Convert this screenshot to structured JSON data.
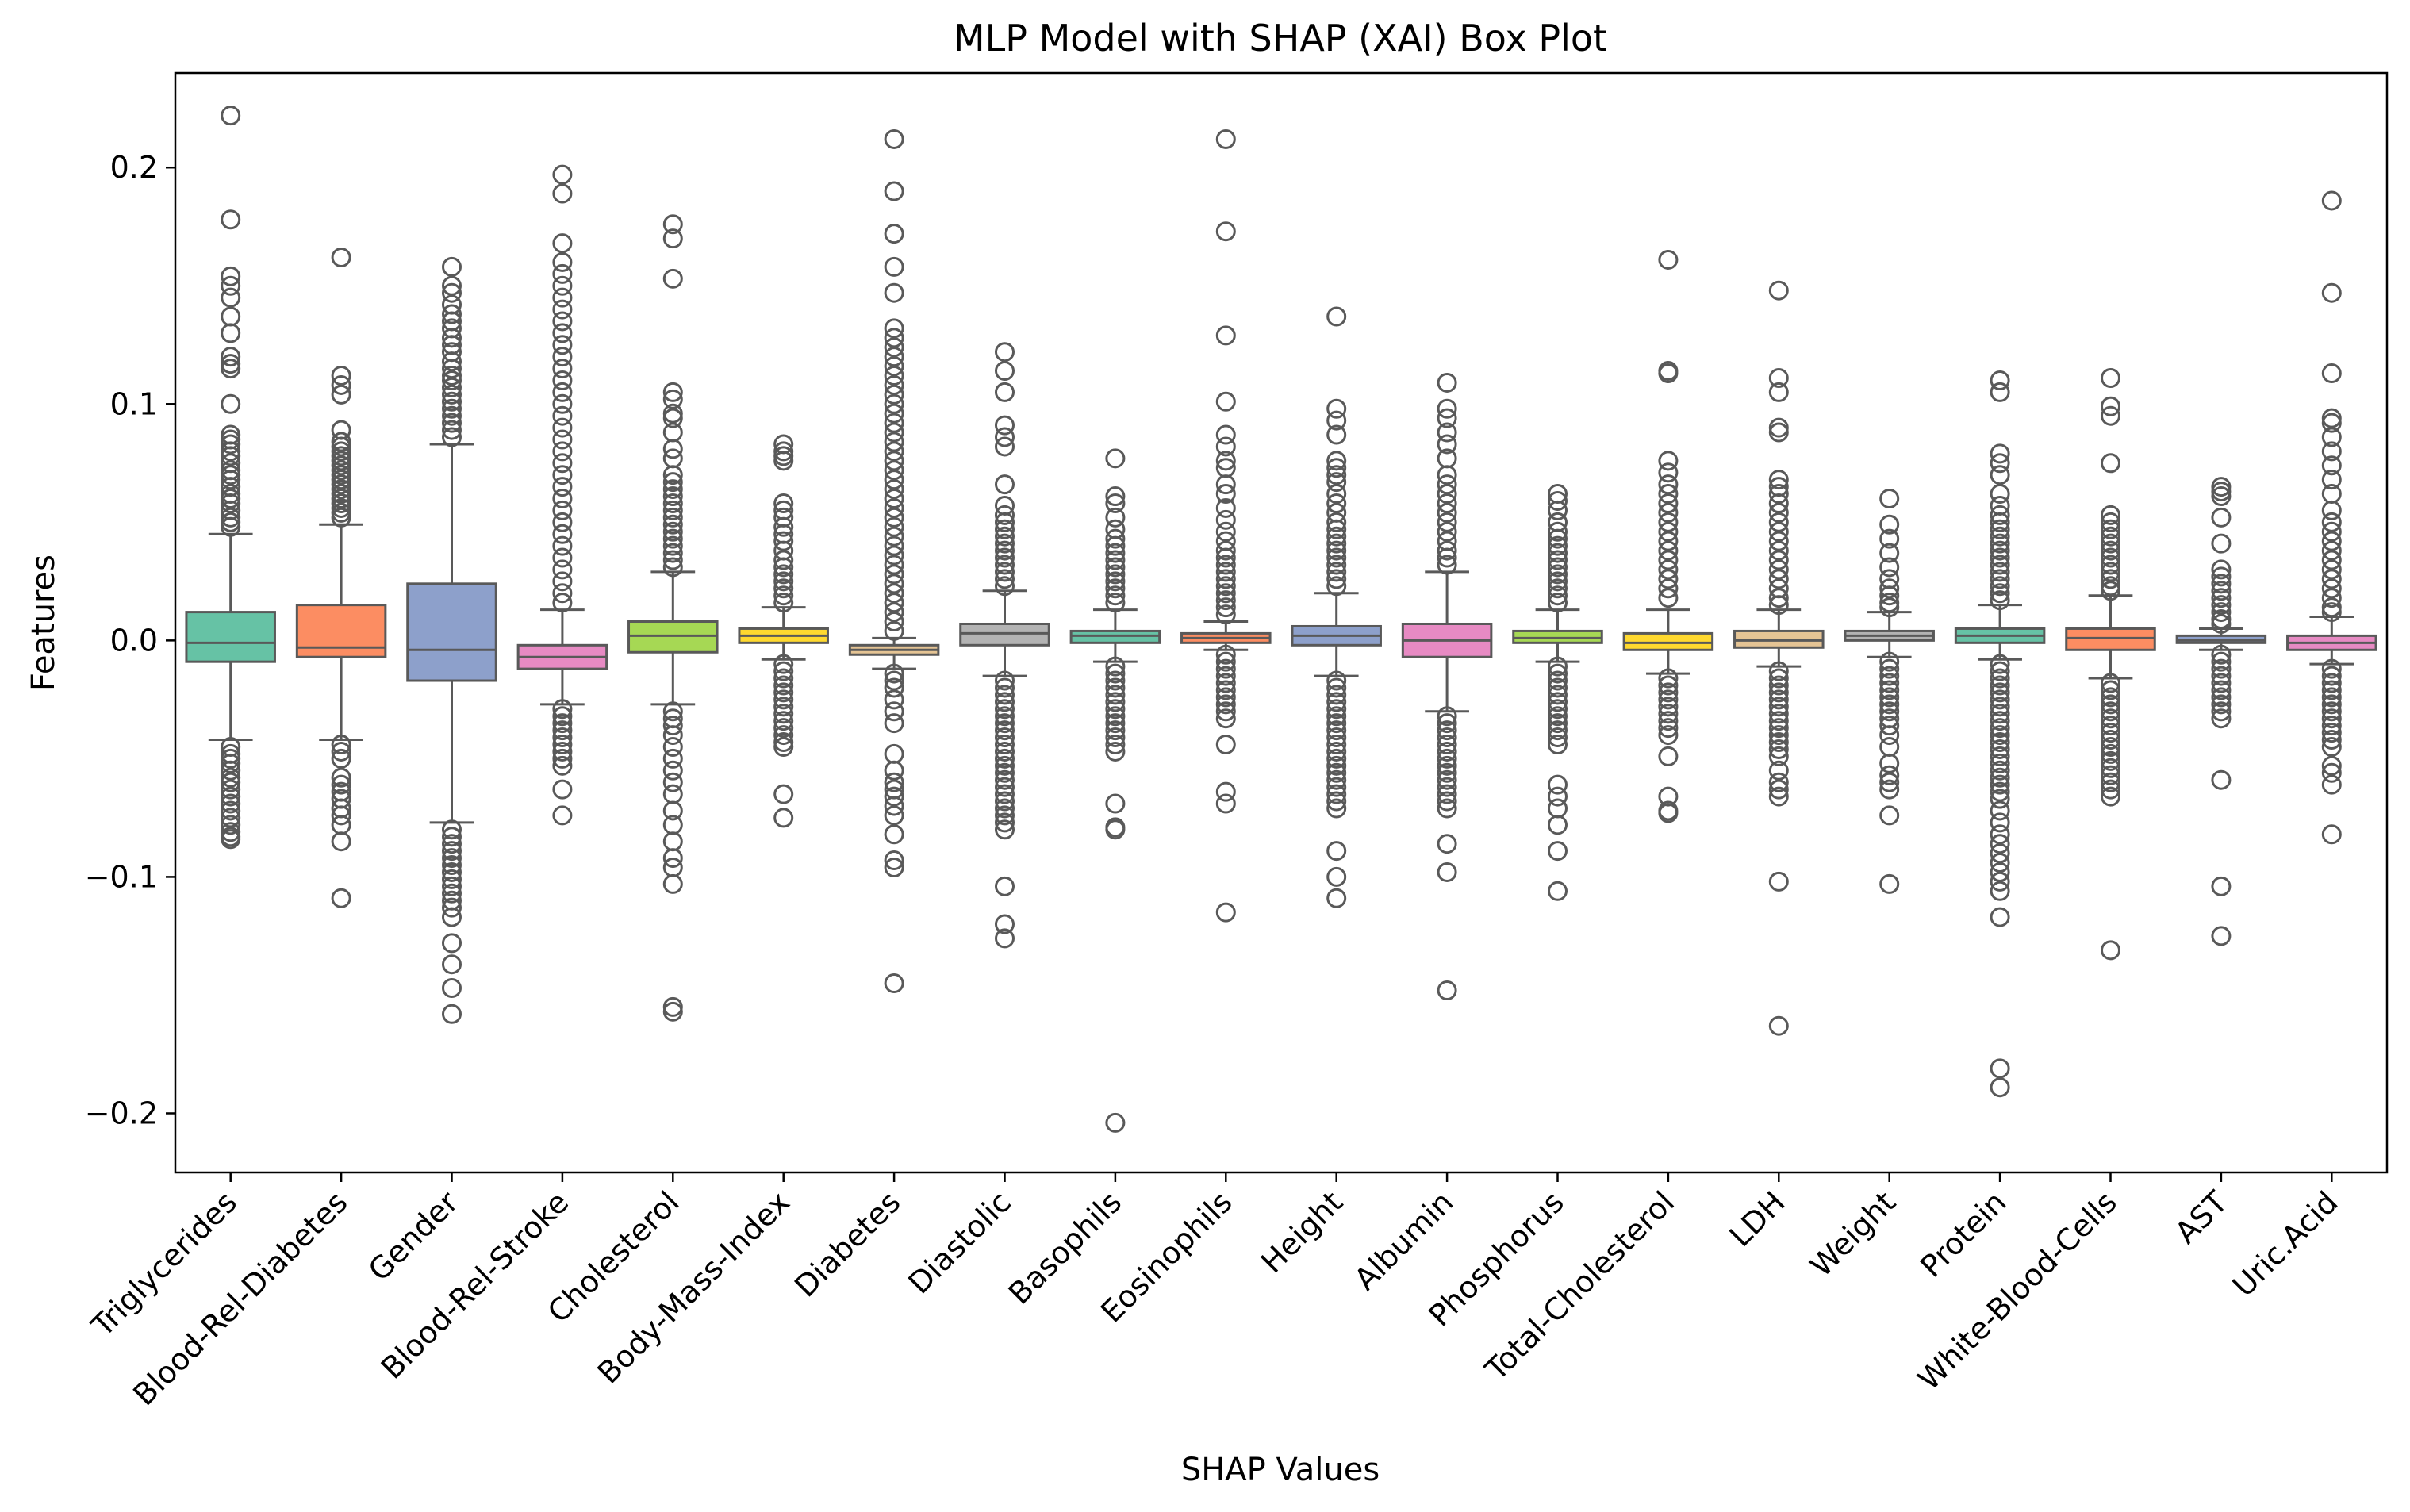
{
  "chart_data": {
    "type": "box",
    "title": "MLP Model with SHAP (XAI) Box Plot",
    "xlabel": "SHAP Values",
    "ylabel": "Features",
    "ylim": [
      -0.225,
      0.24
    ],
    "yticks": [
      -0.2,
      -0.1,
      0.0,
      0.1,
      0.2
    ],
    "ytick_labels": [
      "−0.2",
      "−0.1",
      "0.0",
      "0.1",
      "0.2"
    ],
    "grid": false,
    "categories": [
      "Triglycerides",
      "Blood-Rel-Diabetes",
      "Gender",
      "Blood-Rel-Stroke",
      "Cholesterol",
      "Body-Mass-Index",
      "Diabetes",
      "Diastolic",
      "Basophils",
      "Eosinophils",
      "Height",
      "Albumin",
      "Phosphorus",
      "Total-Cholesterol",
      "LDH",
      "Weight",
      "Protein",
      "White-Blood-Cells",
      "AST",
      "Uric.Acid"
    ],
    "colors": [
      "#66c2a5",
      "#fc8d62",
      "#8da0cb",
      "#e78ac3",
      "#a6d854",
      "#ffd92f",
      "#e5c494",
      "#b3b3b3",
      "#66c2a5",
      "#fc8d62",
      "#8da0cb",
      "#e78ac3",
      "#a6d854",
      "#ffd92f",
      "#e5c494",
      "#b3b3b3",
      "#66c2a5",
      "#fc8d62",
      "#8da0cb",
      "#e78ac3"
    ],
    "boxes": [
      {
        "name": "Triglycerides",
        "whislo": -0.042,
        "q1": -0.009,
        "med": -0.001,
        "q3": 0.012,
        "whishi": 0.045,
        "fliers": [
          0.222,
          0.178,
          0.154,
          0.15,
          0.145,
          0.137,
          0.13,
          0.12,
          0.117,
          0.115,
          0.1,
          0.087,
          0.085,
          0.083,
          0.08,
          0.078,
          0.075,
          0.072,
          0.07,
          0.068,
          0.065,
          0.062,
          0.06,
          0.058,
          0.055,
          0.052,
          0.05,
          0.048,
          -0.045,
          -0.048,
          -0.05,
          -0.052,
          -0.055,
          -0.058,
          -0.06,
          -0.063,
          -0.066,
          -0.069,
          -0.072,
          -0.075,
          -0.078,
          -0.081,
          -0.083,
          -0.084
        ]
      },
      {
        "name": "Blood-Rel-Diabetes",
        "whislo": -0.042,
        "q1": -0.007,
        "med": -0.003,
        "q3": 0.015,
        "whishi": 0.049,
        "fliers": [
          0.162,
          0.112,
          0.108,
          0.104,
          0.089,
          0.084,
          0.082,
          0.08,
          0.078,
          0.076,
          0.074,
          0.072,
          0.07,
          0.068,
          0.066,
          0.064,
          0.062,
          0.06,
          0.058,
          0.056,
          0.054,
          0.052,
          -0.044,
          -0.047,
          -0.05,
          -0.058,
          -0.061,
          -0.064,
          -0.067,
          -0.071,
          -0.074,
          -0.078,
          -0.085,
          -0.109
        ]
      },
      {
        "name": "Gender",
        "whislo": -0.077,
        "q1": -0.017,
        "med": -0.004,
        "q3": 0.024,
        "whishi": 0.083,
        "fliers": [
          0.158,
          0.15,
          0.147,
          0.142,
          0.138,
          0.135,
          0.132,
          0.128,
          0.125,
          0.122,
          0.118,
          0.115,
          0.112,
          0.11,
          0.107,
          0.104,
          0.101,
          0.098,
          0.095,
          0.092,
          0.089,
          0.086,
          -0.08,
          -0.083,
          -0.086,
          -0.089,
          -0.092,
          -0.095,
          -0.098,
          -0.101,
          -0.104,
          -0.107,
          -0.11,
          -0.113,
          -0.117,
          -0.128,
          -0.137,
          -0.147,
          -0.158
        ]
      },
      {
        "name": "Blood-Rel-Stroke",
        "whislo": -0.027,
        "q1": -0.012,
        "med": -0.007,
        "q3": -0.002,
        "whishi": 0.013,
        "fliers": [
          0.197,
          0.189,
          0.168,
          0.16,
          0.155,
          0.15,
          0.145,
          0.14,
          0.135,
          0.13,
          0.125,
          0.12,
          0.115,
          0.11,
          0.105,
          0.1,
          0.095,
          0.09,
          0.085,
          0.08,
          0.075,
          0.07,
          0.065,
          0.06,
          0.055,
          0.05,
          0.045,
          0.04,
          0.035,
          0.03,
          0.025,
          0.02,
          0.016,
          -0.029,
          -0.032,
          -0.035,
          -0.038,
          -0.041,
          -0.044,
          -0.047,
          -0.05,
          -0.053,
          -0.063,
          -0.074
        ]
      },
      {
        "name": "Cholesterol",
        "whislo": -0.027,
        "q1": -0.005,
        "med": 0.002,
        "q3": 0.008,
        "whishi": 0.029,
        "fliers": [
          0.176,
          0.17,
          0.153,
          0.105,
          0.102,
          0.096,
          0.094,
          0.088,
          0.081,
          0.077,
          0.07,
          0.067,
          0.064,
          0.061,
          0.058,
          0.055,
          0.052,
          0.049,
          0.046,
          0.043,
          0.04,
          0.037,
          0.034,
          0.031,
          -0.03,
          -0.033,
          -0.036,
          -0.04,
          -0.045,
          -0.05,
          -0.055,
          -0.06,
          -0.065,
          -0.072,
          -0.078,
          -0.085,
          -0.092,
          -0.096,
          -0.103,
          -0.155,
          -0.157
        ]
      },
      {
        "name": "Body-Mass-Index",
        "whislo": -0.008,
        "q1": -0.001,
        "med": 0.002,
        "q3": 0.005,
        "whishi": 0.014,
        "fliers": [
          0.083,
          0.08,
          0.078,
          0.076,
          0.058,
          0.055,
          0.052,
          0.048,
          0.045,
          0.042,
          0.038,
          0.034,
          0.031,
          0.028,
          0.025,
          0.022,
          0.019,
          0.016,
          -0.01,
          -0.013,
          -0.016,
          -0.019,
          -0.022,
          -0.025,
          -0.028,
          -0.031,
          -0.034,
          -0.037,
          -0.04,
          -0.043,
          -0.045,
          -0.065,
          -0.075
        ]
      },
      {
        "name": "Diabetes",
        "whislo": -0.012,
        "q1": -0.006,
        "med": -0.004,
        "q3": -0.002,
        "whishi": 0.001,
        "fliers": [
          0.212,
          0.19,
          0.172,
          0.158,
          0.147,
          0.132,
          0.128,
          0.124,
          0.12,
          0.116,
          0.112,
          0.108,
          0.104,
          0.1,
          0.096,
          0.092,
          0.088,
          0.084,
          0.08,
          0.076,
          0.072,
          0.068,
          0.064,
          0.06,
          0.056,
          0.052,
          0.048,
          0.044,
          0.04,
          0.036,
          0.032,
          0.028,
          0.024,
          0.02,
          0.016,
          0.012,
          0.008,
          0.004,
          -0.014,
          -0.017,
          -0.02,
          -0.025,
          -0.03,
          -0.035,
          -0.048,
          -0.055,
          -0.06,
          -0.063,
          -0.066,
          -0.07,
          -0.074,
          -0.082,
          -0.093,
          -0.096,
          -0.145
        ]
      },
      {
        "name": "Diastolic",
        "whislo": -0.015,
        "q1": -0.002,
        "med": 0.003,
        "q3": 0.007,
        "whishi": 0.021,
        "fliers": [
          0.122,
          0.114,
          0.105,
          0.091,
          0.086,
          0.082,
          0.066,
          0.057,
          0.053,
          0.05,
          0.047,
          0.044,
          0.041,
          0.038,
          0.035,
          0.032,
          0.029,
          0.026,
          0.023,
          -0.017,
          -0.02,
          -0.023,
          -0.026,
          -0.029,
          -0.032,
          -0.035,
          -0.038,
          -0.041,
          -0.044,
          -0.047,
          -0.05,
          -0.053,
          -0.056,
          -0.059,
          -0.062,
          -0.065,
          -0.068,
          -0.071,
          -0.074,
          -0.077,
          -0.08,
          -0.104,
          -0.12,
          -0.126
        ]
      },
      {
        "name": "Basophils",
        "whislo": -0.009,
        "q1": -0.001,
        "med": 0.002,
        "q3": 0.004,
        "whishi": 0.013,
        "fliers": [
          0.077,
          0.061,
          0.058,
          0.052,
          0.047,
          0.043,
          0.04,
          0.037,
          0.034,
          0.031,
          0.028,
          0.025,
          0.022,
          0.019,
          0.016,
          -0.011,
          -0.014,
          -0.017,
          -0.02,
          -0.023,
          -0.026,
          -0.029,
          -0.032,
          -0.035,
          -0.038,
          -0.041,
          -0.044,
          -0.047,
          -0.069,
          -0.079,
          -0.08,
          -0.204
        ]
      },
      {
        "name": "Eosinophils",
        "whislo": -0.004,
        "q1": -0.001,
        "med": 0.001,
        "q3": 0.003,
        "whishi": 0.008,
        "fliers": [
          0.212,
          0.173,
          0.129,
          0.101,
          0.087,
          0.082,
          0.076,
          0.073,
          0.066,
          0.062,
          0.056,
          0.051,
          0.046,
          0.042,
          0.038,
          0.035,
          0.032,
          0.029,
          0.026,
          0.023,
          0.02,
          0.017,
          0.014,
          0.011,
          -0.006,
          -0.009,
          -0.012,
          -0.015,
          -0.018,
          -0.021,
          -0.024,
          -0.027,
          -0.03,
          -0.033,
          -0.044,
          -0.064,
          -0.069,
          -0.115
        ]
      },
      {
        "name": "Height",
        "whislo": -0.015,
        "q1": -0.002,
        "med": 0.002,
        "q3": 0.006,
        "whishi": 0.02,
        "fliers": [
          0.137,
          0.098,
          0.093,
          0.087,
          0.076,
          0.073,
          0.07,
          0.067,
          0.062,
          0.058,
          0.054,
          0.05,
          0.047,
          0.044,
          0.041,
          0.038,
          0.035,
          0.032,
          0.029,
          0.026,
          0.023,
          -0.017,
          -0.02,
          -0.023,
          -0.026,
          -0.029,
          -0.032,
          -0.035,
          -0.038,
          -0.041,
          -0.044,
          -0.047,
          -0.05,
          -0.053,
          -0.056,
          -0.059,
          -0.062,
          -0.065,
          -0.068,
          -0.071,
          -0.089,
          -0.1,
          -0.109
        ]
      },
      {
        "name": "Albumin",
        "whislo": -0.03,
        "q1": -0.007,
        "med": 0.0,
        "q3": 0.007,
        "whishi": 0.029,
        "fliers": [
          0.109,
          0.098,
          0.094,
          0.088,
          0.083,
          0.077,
          0.07,
          0.066,
          0.062,
          0.058,
          0.054,
          0.05,
          0.046,
          0.042,
          0.038,
          0.035,
          0.032,
          -0.032,
          -0.035,
          -0.038,
          -0.041,
          -0.044,
          -0.047,
          -0.05,
          -0.053,
          -0.056,
          -0.059,
          -0.062,
          -0.065,
          -0.068,
          -0.071,
          -0.086,
          -0.098,
          -0.148
        ]
      },
      {
        "name": "Phosphorus",
        "whislo": -0.009,
        "q1": -0.001,
        "med": 0.001,
        "q3": 0.004,
        "whishi": 0.013,
        "fliers": [
          0.062,
          0.059,
          0.055,
          0.05,
          0.046,
          0.043,
          0.04,
          0.037,
          0.034,
          0.031,
          0.028,
          0.025,
          0.022,
          0.019,
          0.016,
          -0.011,
          -0.014,
          -0.017,
          -0.02,
          -0.023,
          -0.026,
          -0.029,
          -0.032,
          -0.035,
          -0.038,
          -0.041,
          -0.044,
          -0.061,
          -0.066,
          -0.071,
          -0.078,
          -0.089,
          -0.106
        ]
      },
      {
        "name": "Total-Cholesterol",
        "whislo": -0.014,
        "q1": -0.004,
        "med": -0.001,
        "q3": 0.003,
        "whishi": 0.013,
        "fliers": [
          0.161,
          0.114,
          0.113,
          0.076,
          0.071,
          0.066,
          0.062,
          0.058,
          0.054,
          0.05,
          0.046,
          0.042,
          0.038,
          0.034,
          0.03,
          0.026,
          0.022,
          0.018,
          -0.016,
          -0.019,
          -0.022,
          -0.025,
          -0.028,
          -0.031,
          -0.034,
          -0.037,
          -0.04,
          -0.049,
          -0.066,
          -0.072,
          -0.073
        ]
      },
      {
        "name": "LDH",
        "whislo": -0.011,
        "q1": -0.003,
        "med": 0.0,
        "q3": 0.004,
        "whishi": 0.013,
        "fliers": [
          0.148,
          0.111,
          0.105,
          0.09,
          0.088,
          0.068,
          0.065,
          0.062,
          0.058,
          0.054,
          0.05,
          0.046,
          0.042,
          0.038,
          0.034,
          0.03,
          0.026,
          0.022,
          0.018,
          0.015,
          -0.013,
          -0.016,
          -0.019,
          -0.022,
          -0.025,
          -0.028,
          -0.031,
          -0.034,
          -0.037,
          -0.04,
          -0.043,
          -0.046,
          -0.049,
          -0.055,
          -0.06,
          -0.063,
          -0.066,
          -0.102,
          -0.163
        ]
      },
      {
        "name": "Weight",
        "whislo": -0.007,
        "q1": 0.0,
        "med": 0.002,
        "q3": 0.004,
        "whishi": 0.012,
        "fliers": [
          0.06,
          0.049,
          0.043,
          0.037,
          0.031,
          0.026,
          0.022,
          0.019,
          0.016,
          0.014,
          -0.009,
          -0.012,
          -0.015,
          -0.018,
          -0.021,
          -0.024,
          -0.027,
          -0.03,
          -0.033,
          -0.036,
          -0.04,
          -0.045,
          -0.052,
          -0.057,
          -0.06,
          -0.063,
          -0.074,
          -0.103
        ]
      },
      {
        "name": "Protein",
        "whislo": -0.008,
        "q1": -0.001,
        "med": 0.002,
        "q3": 0.005,
        "whishi": 0.015,
        "fliers": [
          0.11,
          0.105,
          0.079,
          0.075,
          0.07,
          0.062,
          0.057,
          0.053,
          0.05,
          0.047,
          0.044,
          0.041,
          0.038,
          0.035,
          0.032,
          0.029,
          0.026,
          0.023,
          0.02,
          0.017,
          -0.01,
          -0.013,
          -0.016,
          -0.019,
          -0.022,
          -0.025,
          -0.028,
          -0.031,
          -0.034,
          -0.037,
          -0.04,
          -0.043,
          -0.046,
          -0.049,
          -0.052,
          -0.055,
          -0.058,
          -0.061,
          -0.064,
          -0.067,
          -0.072,
          -0.077,
          -0.082,
          -0.086,
          -0.09,
          -0.094,
          -0.098,
          -0.102,
          -0.106,
          -0.117,
          -0.181,
          -0.189
        ]
      },
      {
        "name": "White-Blood-Cells",
        "whislo": -0.016,
        "q1": -0.004,
        "med": 0.001,
        "q3": 0.005,
        "whishi": 0.019,
        "fliers": [
          0.111,
          0.099,
          0.095,
          0.075,
          0.053,
          0.05,
          0.047,
          0.044,
          0.041,
          0.038,
          0.035,
          0.032,
          0.029,
          0.026,
          0.023,
          0.021,
          -0.018,
          -0.021,
          -0.024,
          -0.027,
          -0.03,
          -0.033,
          -0.036,
          -0.039,
          -0.042,
          -0.045,
          -0.048,
          -0.051,
          -0.054,
          -0.057,
          -0.06,
          -0.063,
          -0.066,
          -0.131
        ]
      },
      {
        "name": "AST",
        "whislo": -0.004,
        "q1": -0.001,
        "med": 0.0,
        "q3": 0.002,
        "whishi": 0.005,
        "fliers": [
          0.065,
          0.063,
          0.061,
          0.052,
          0.041,
          0.03,
          0.027,
          0.024,
          0.021,
          0.018,
          0.015,
          0.012,
          0.009,
          0.007,
          -0.006,
          -0.009,
          -0.012,
          -0.015,
          -0.018,
          -0.021,
          -0.024,
          -0.027,
          -0.03,
          -0.033,
          -0.059,
          -0.104,
          -0.125
        ]
      },
      {
        "name": "Uric.Acid",
        "whislo": -0.01,
        "q1": -0.004,
        "med": -0.001,
        "q3": 0.002,
        "whishi": 0.01,
        "fliers": [
          0.186,
          0.147,
          0.113,
          0.094,
          0.092,
          0.086,
          0.08,
          0.074,
          0.068,
          0.062,
          0.055,
          0.05,
          0.046,
          0.042,
          0.038,
          0.034,
          0.03,
          0.026,
          0.022,
          0.018,
          0.014,
          0.012,
          -0.012,
          -0.015,
          -0.018,
          -0.021,
          -0.024,
          -0.027,
          -0.03,
          -0.033,
          -0.036,
          -0.039,
          -0.042,
          -0.045,
          -0.053,
          -0.056,
          -0.061,
          -0.082
        ]
      }
    ]
  }
}
